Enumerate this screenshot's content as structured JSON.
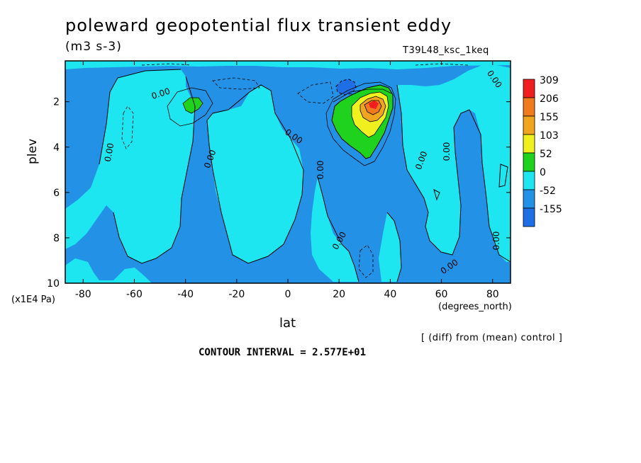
{
  "title": "poleward geopotential flux transient eddy",
  "units": "(m3 s-3)",
  "run_label": "T39L48_ksc_1keq",
  "ylabel": "plev",
  "yunit": "(x1E4 Pa)",
  "xlabel": "lat",
  "xunit": "(degrees_north)",
  "diff_note": "[ (diff) from (mean) control ]",
  "contour_interval": "CONTOUR INTERVAL = 2.577E+01",
  "contour_label": "0.00",
  "colors": {
    "neg_155": "#1e6fe6",
    "neg_52": "#2391e6",
    "zero": "#1ee6f0",
    "pos_52": "#1ed21e",
    "pos_103": "#f0f01e",
    "pos_155": "#f0a51e",
    "pos_206": "#f07a1e",
    "pos_309": "#f01e1e"
  },
  "chart_data": {
    "type": "heatmap",
    "subtype": "filled-contour",
    "x_ticks": [
      "-80",
      "-60",
      "-40",
      "-20",
      "0",
      "20",
      "40",
      "60",
      "80"
    ],
    "y_ticks": [
      "2",
      "4",
      "6",
      "8",
      "10"
    ],
    "xlim": [
      -87,
      87
    ],
    "ylim": [
      0.2,
      10
    ],
    "y_inverted": true,
    "colorbar_levels": [
      "309",
      "206",
      "155",
      "103",
      "52",
      "0",
      "-52",
      "-155"
    ],
    "features": [
      {
        "kind": "max",
        "lat": 33,
        "plev": 2.0,
        "value_range": "206 to 309"
      },
      {
        "kind": "positive_region",
        "lat_range": [
          18,
          40
        ],
        "plev_range": [
          1.2,
          4.4
        ],
        "value_range": "52 to 206"
      },
      {
        "kind": "min",
        "lat": 22,
        "plev": 1.2,
        "value_range": "-155 to -52"
      },
      {
        "kind": "positive_patch",
        "lat": -37,
        "plev": 2.1,
        "value_range": "52 to 103"
      }
    ]
  }
}
